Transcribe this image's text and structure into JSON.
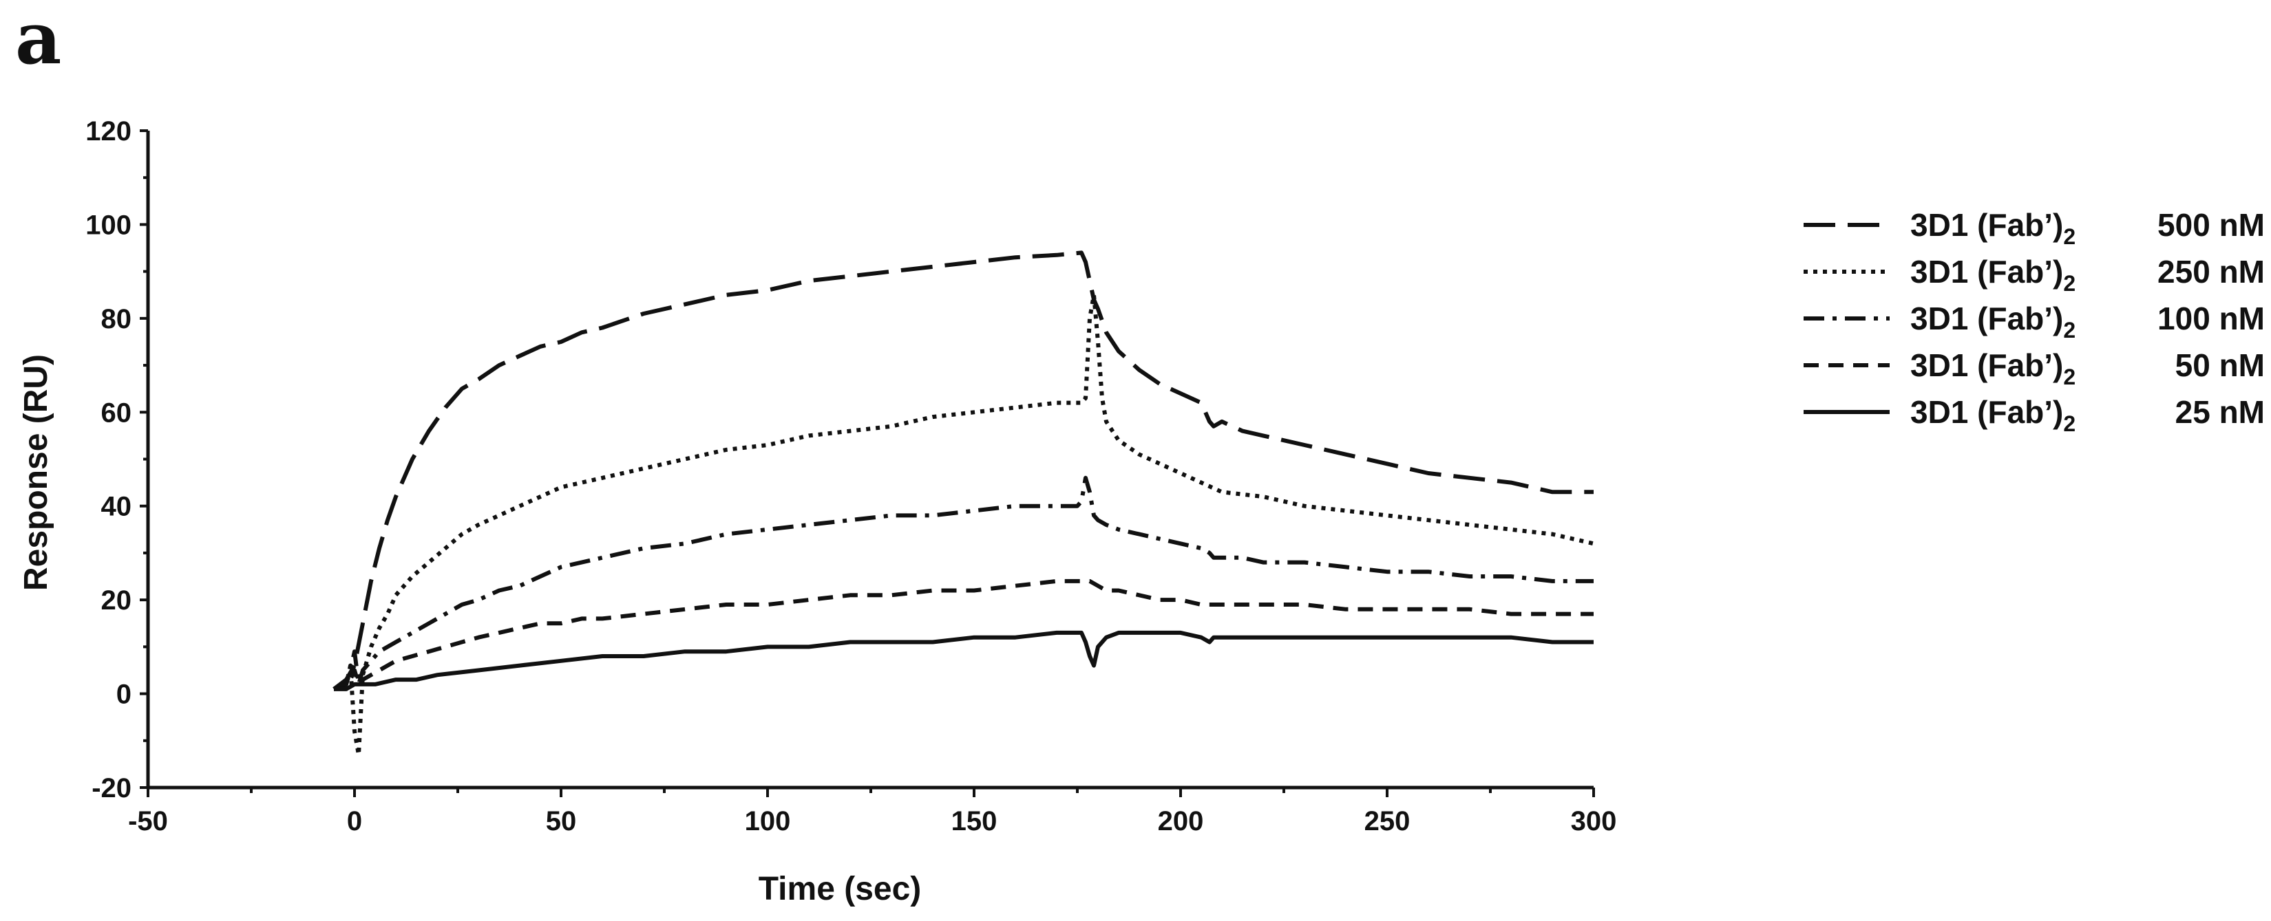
{
  "panel_label": "a",
  "colors": {
    "ink": "#111111",
    "background": "#ffffff"
  },
  "chart_data": {
    "type": "line",
    "title": "",
    "xlabel": "Time (sec)",
    "ylabel": "Response (RU)",
    "xlim": [
      -50,
      300
    ],
    "ylim": [
      -20,
      120
    ],
    "xticks": [
      -50,
      0,
      50,
      100,
      150,
      200,
      250,
      300
    ],
    "yticks": [
      -20,
      0,
      20,
      40,
      60,
      80,
      100,
      120
    ],
    "xtick_labels": [
      "-50",
      "0",
      "50",
      "100",
      "150",
      "200",
      "250",
      "300"
    ],
    "ytick_labels": [
      "-20",
      "0",
      "20",
      "40",
      "60",
      "80",
      "100",
      "120"
    ],
    "legend_position": "right",
    "series": [
      {
        "name": "500 nM",
        "legend_label": {
          "prefix": "3D1 (Fab’)",
          "subscript": "2",
          "conc": "500 nM"
        },
        "style": "long-dash",
        "x": [
          -5,
          -2,
          0,
          2,
          4,
          6,
          8,
          10,
          14,
          18,
          22,
          26,
          30,
          35,
          40,
          45,
          50,
          55,
          60,
          70,
          80,
          90,
          100,
          110,
          120,
          130,
          140,
          150,
          160,
          170,
          176,
          177,
          178,
          179,
          180,
          182,
          185,
          190,
          195,
          200,
          205,
          207,
          208,
          210,
          215,
          220,
          230,
          240,
          250,
          260,
          270,
          280,
          290,
          300
        ],
        "y": [
          1,
          3,
          6,
          15,
          24,
          31,
          37,
          42,
          50,
          56,
          61,
          65,
          67,
          70,
          72,
          74,
          75,
          77,
          78,
          81,
          83,
          85,
          86,
          88,
          89,
          90,
          91,
          92,
          93,
          93.5,
          94,
          92,
          88,
          84,
          82,
          77,
          73,
          69,
          66,
          64,
          62,
          58,
          57,
          58,
          56,
          55,
          53,
          51,
          49,
          47,
          46,
          45,
          43,
          43
        ]
      },
      {
        "name": "250 nM",
        "legend_label": {
          "prefix": "3D1 (Fab’)",
          "subscript": "2",
          "conc": "250 nM"
        },
        "style": "dotted",
        "x": [
          -5,
          -2,
          -1,
          0,
          1,
          2,
          4,
          6,
          8,
          10,
          14,
          18,
          22,
          26,
          30,
          35,
          40,
          45,
          50,
          55,
          60,
          70,
          80,
          90,
          100,
          110,
          120,
          130,
          140,
          150,
          160,
          170,
          176,
          177,
          178,
          179,
          180,
          181,
          182,
          185,
          190,
          195,
          200,
          205,
          210,
          220,
          230,
          240,
          250,
          260,
          270,
          280,
          290,
          300
        ],
        "y": [
          1,
          2,
          6,
          -8,
          -13,
          4,
          10,
          14,
          17,
          21,
          25,
          28,
          31,
          34,
          36,
          38,
          40,
          42,
          44,
          45,
          46,
          48,
          50,
          52,
          53,
          55,
          56,
          57,
          59,
          60,
          61,
          62,
          62,
          63,
          80,
          85,
          75,
          63,
          58,
          54,
          51,
          49,
          47,
          45,
          43,
          42,
          40,
          39,
          38,
          37,
          36,
          35,
          34,
          32
        ]
      },
      {
        "name": "100 nM",
        "legend_label": {
          "prefix": "3D1 (Fab’)",
          "subscript": "2",
          "conc": "100 nM"
        },
        "style": "dash-dot",
        "x": [
          -5,
          -2,
          -1,
          0,
          1,
          2,
          4,
          6,
          8,
          10,
          14,
          18,
          22,
          26,
          30,
          35,
          40,
          45,
          50,
          55,
          60,
          70,
          80,
          90,
          100,
          110,
          120,
          130,
          140,
          150,
          160,
          170,
          175,
          176,
          177,
          178,
          179,
          180,
          182,
          185,
          190,
          195,
          200,
          205,
          207,
          208,
          210,
          215,
          220,
          230,
          240,
          250,
          260,
          270,
          280,
          290,
          300
        ],
        "y": [
          1,
          2,
          5,
          9,
          2,
          5,
          7,
          9,
          10,
          11,
          13,
          15,
          17,
          19,
          20,
          22,
          23,
          25,
          27,
          28,
          29,
          31,
          32,
          34,
          35,
          36,
          37,
          38,
          38,
          39,
          40,
          40,
          40,
          41,
          46,
          43,
          38,
          37,
          36,
          35,
          34,
          33,
          32,
          31,
          30,
          29,
          29,
          29,
          28,
          28,
          27,
          26,
          26,
          25,
          25,
          24,
          24
        ]
      },
      {
        "name": "50 nM",
        "legend_label": {
          "prefix": "3D1 (Fab’)",
          "subscript": "2",
          "conc": "50 nM"
        },
        "style": "dashed",
        "x": [
          -5,
          -2,
          -1,
          0,
          1,
          2,
          4,
          6,
          8,
          10,
          14,
          18,
          22,
          26,
          30,
          35,
          40,
          45,
          50,
          55,
          60,
          70,
          80,
          90,
          100,
          110,
          120,
          130,
          140,
          150,
          160,
          170,
          176,
          178,
          180,
          182,
          185,
          190,
          195,
          200,
          205,
          210,
          220,
          230,
          240,
          250,
          260,
          270,
          280,
          290,
          300
        ],
        "y": [
          1,
          1,
          3,
          5,
          2,
          3,
          4,
          5,
          6,
          7,
          8,
          9,
          10,
          11,
          12,
          13,
          14,
          15,
          15,
          16,
          16,
          17,
          18,
          19,
          19,
          20,
          21,
          21,
          22,
          22,
          23,
          24,
          24,
          24,
          23,
          22,
          22,
          21,
          20,
          20,
          19,
          19,
          19,
          19,
          18,
          18,
          18,
          18,
          17,
          17,
          17
        ]
      },
      {
        "name": "25 nM",
        "legend_label": {
          "prefix": "3D1 (Fab’)",
          "subscript": "2",
          "conc": "25 nM"
        },
        "style": "solid",
        "x": [
          -5,
          -2,
          0,
          2,
          5,
          10,
          15,
          20,
          30,
          40,
          50,
          60,
          70,
          80,
          90,
          100,
          110,
          120,
          130,
          140,
          150,
          160,
          170,
          176,
          177,
          178,
          179,
          180,
          182,
          185,
          190,
          200,
          205,
          207,
          208,
          210,
          220,
          230,
          240,
          250,
          260,
          270,
          280,
          290,
          300
        ],
        "y": [
          1,
          1,
          2,
          2,
          2,
          3,
          3,
          4,
          5,
          6,
          7,
          8,
          8,
          9,
          9,
          10,
          10,
          11,
          11,
          11,
          12,
          12,
          13,
          13,
          11,
          8,
          6,
          10,
          12,
          13,
          13,
          13,
          12,
          11,
          12,
          12,
          12,
          12,
          12,
          12,
          12,
          12,
          12,
          11,
          11
        ]
      }
    ]
  }
}
